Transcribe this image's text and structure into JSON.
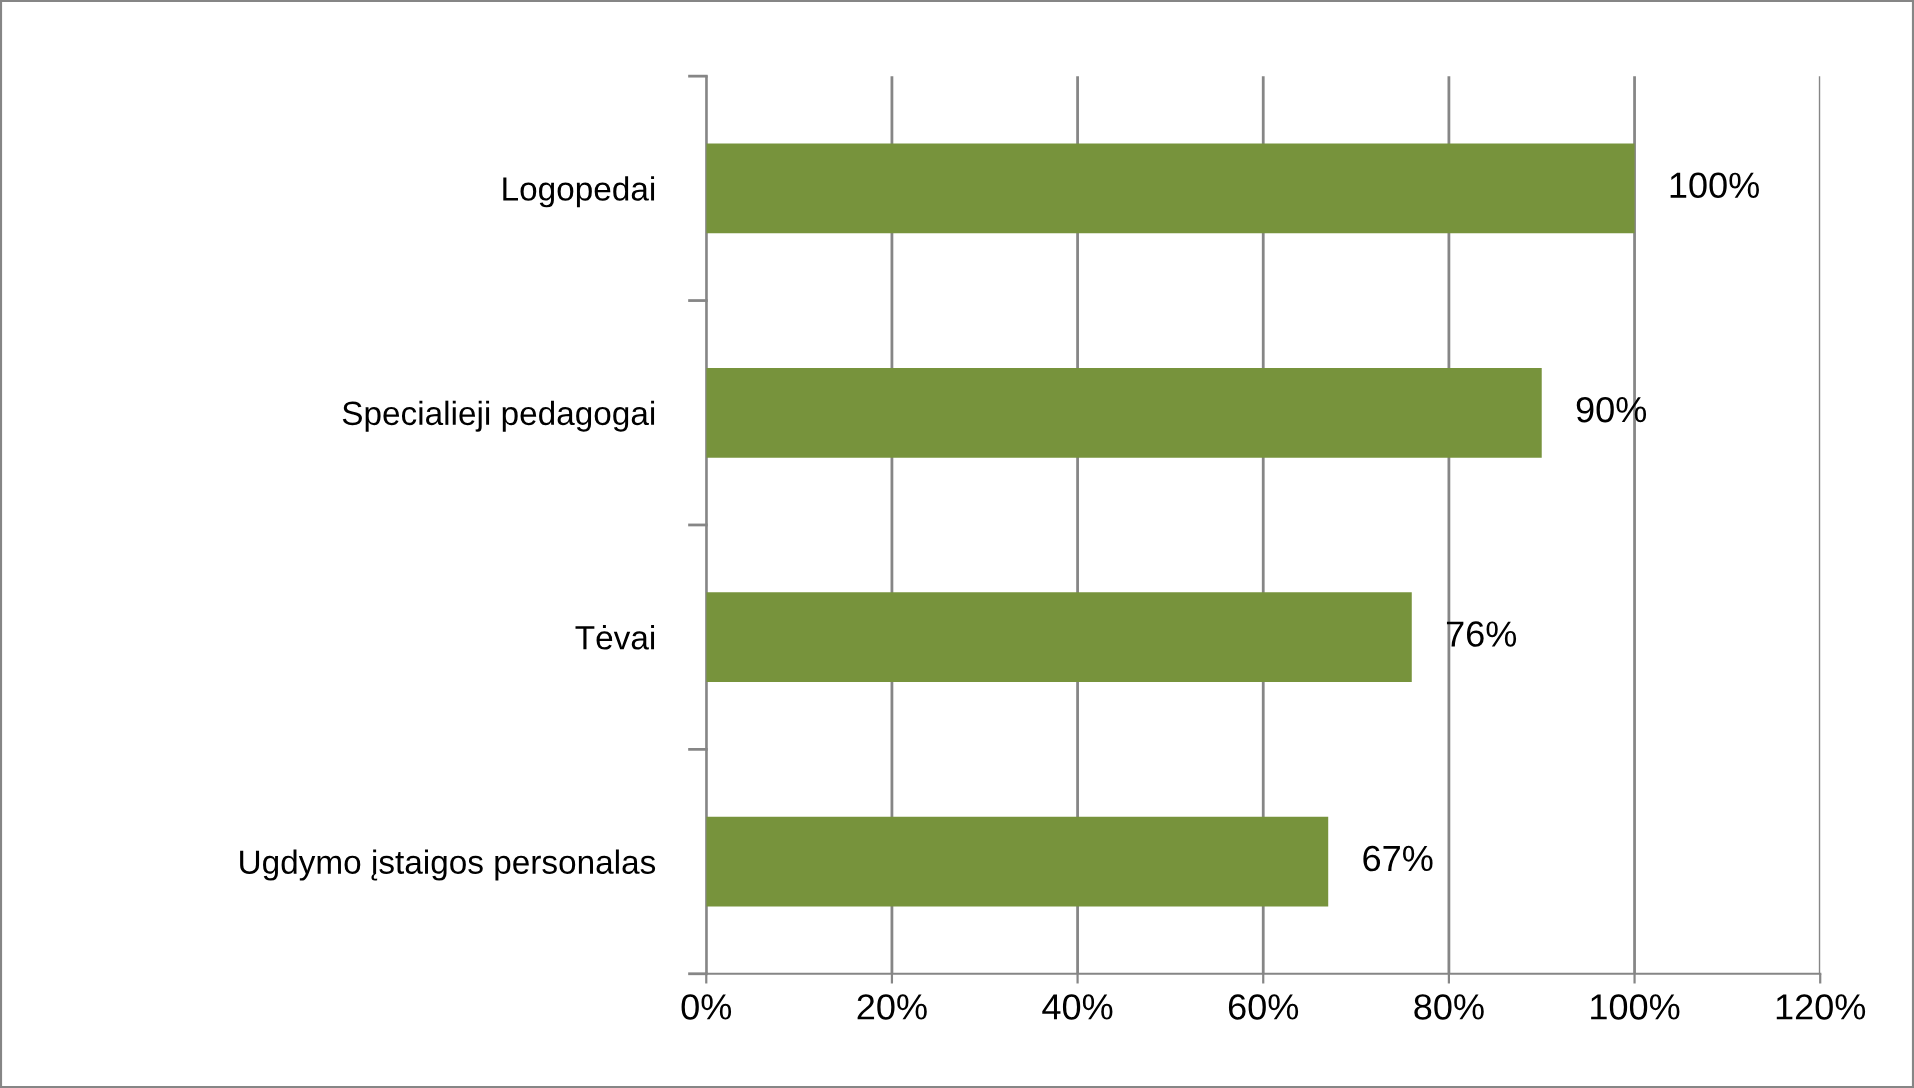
{
  "chart_data": {
    "type": "bar",
    "orientation": "horizontal",
    "categories": [
      "Logopedai",
      "Specialieji pedagogai",
      "Tėvai",
      "Ugdymo įstaigos personalas"
    ],
    "values": [
      100,
      90,
      76,
      67
    ],
    "value_labels": [
      "100%",
      "90%",
      "76%",
      "67%"
    ],
    "color": "#77933c",
    "xlim": [
      0,
      120
    ],
    "xticks": [
      {
        "value": 0,
        "label": "0%"
      },
      {
        "value": 20,
        "label": "20%"
      },
      {
        "value": 40,
        "label": "40%"
      },
      {
        "value": 60,
        "label": "60%"
      },
      {
        "value": 80,
        "label": "80%"
      },
      {
        "value": 100,
        "label": "100%"
      },
      {
        "value": 120,
        "label": "120%"
      }
    ],
    "grid": "x",
    "legend": false
  }
}
